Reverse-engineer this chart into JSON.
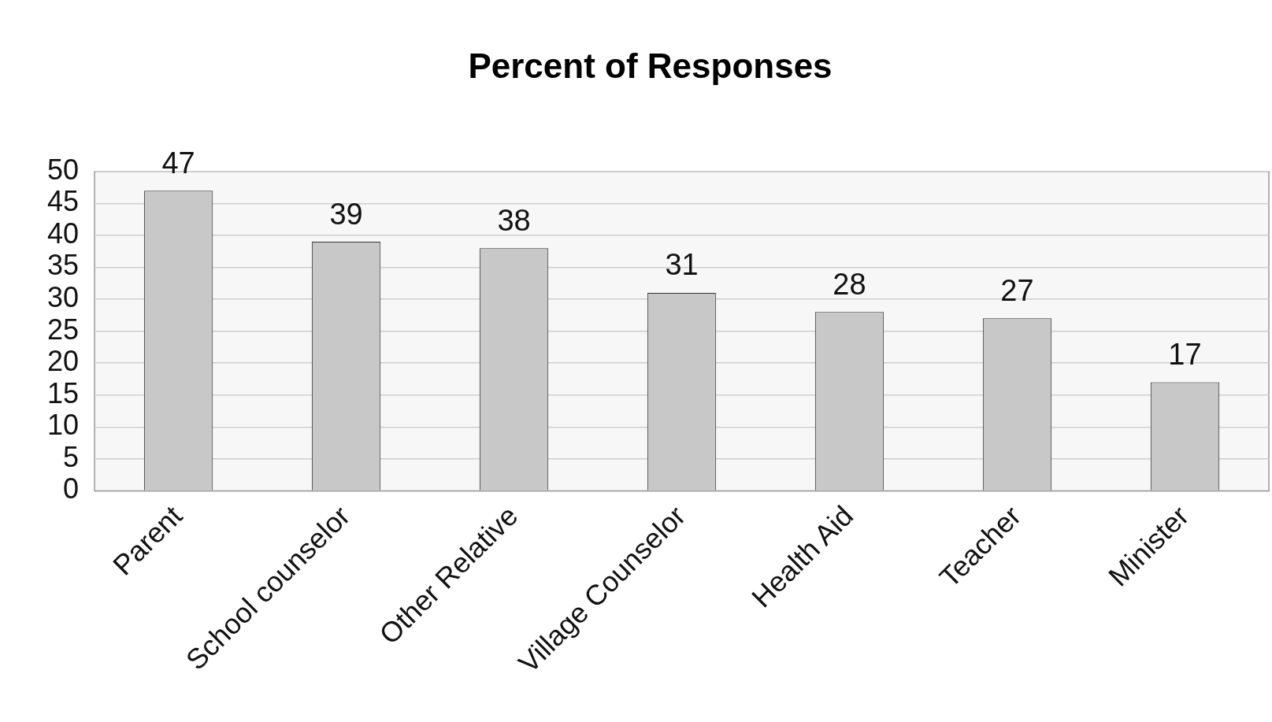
{
  "chart_data": {
    "type": "bar",
    "title": "Percent of Responses",
    "categories": [
      "Parent",
      "School counselor",
      "Other Relative",
      "Village Counselor",
      "Health Aid",
      "Teacher",
      "Minister"
    ],
    "values": [
      47,
      39,
      38,
      31,
      28,
      27,
      17
    ],
    "color": "#c8c8c8",
    "ylim": [
      0,
      50
    ],
    "yticks": [
      0,
      5,
      10,
      15,
      20,
      25,
      30,
      35,
      40,
      45,
      50
    ],
    "grid": "y",
    "legend": false,
    "data_labels": true
  }
}
